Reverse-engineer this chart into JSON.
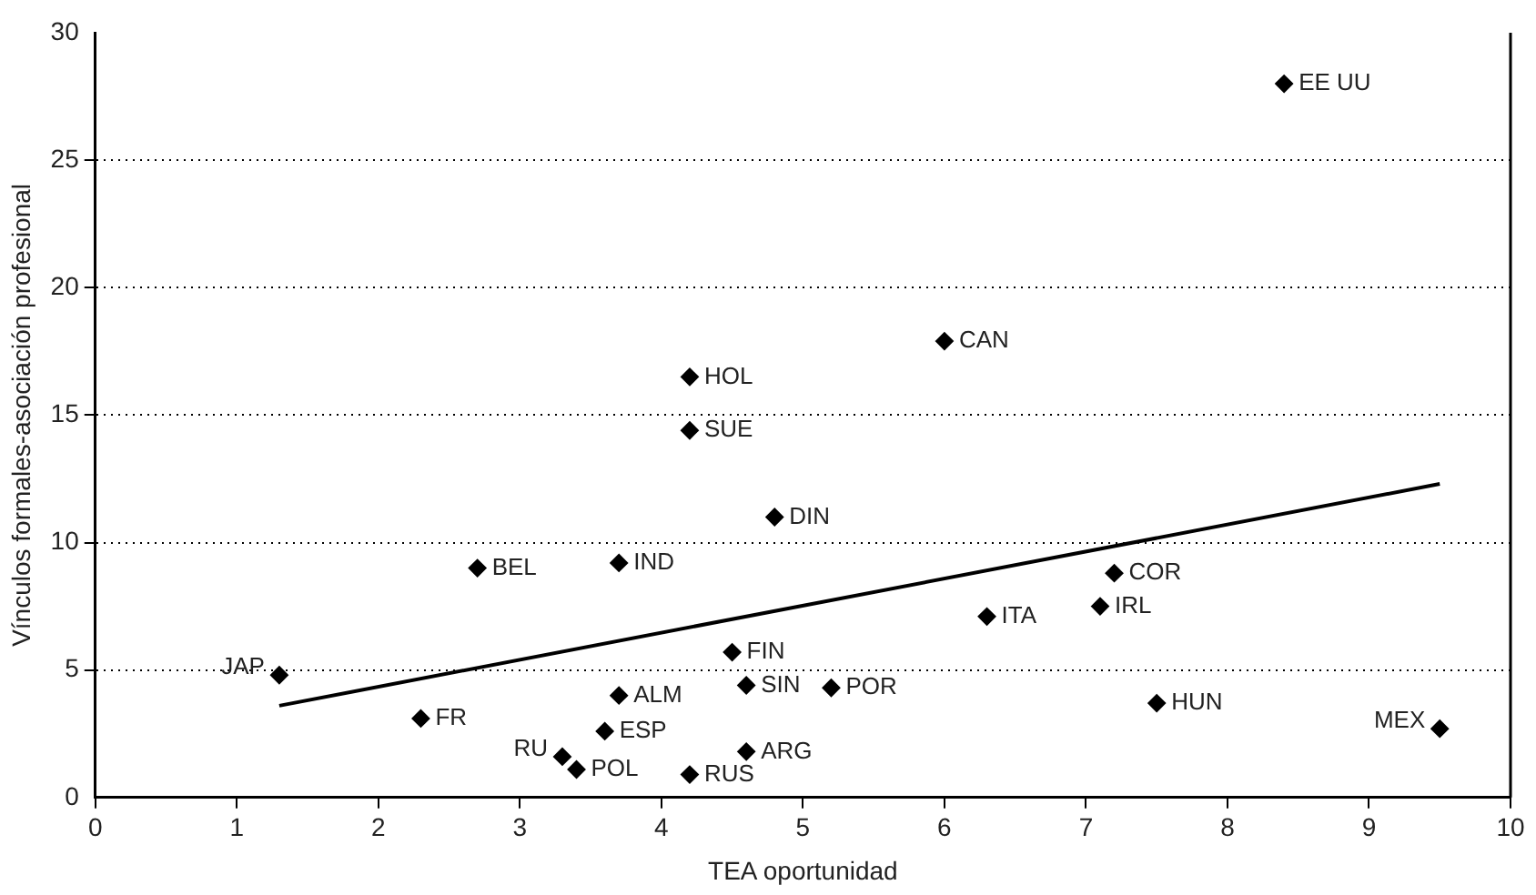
{
  "chart_data": {
    "type": "scatter",
    "xlabel": "TEA oportunidad",
    "ylabel": "Vínculos formales-asociación profesional",
    "xlim": [
      0,
      10
    ],
    "xticks": [
      0,
      1,
      2,
      3,
      4,
      5,
      6,
      7,
      8,
      9,
      10
    ],
    "ylim": [
      0,
      30
    ],
    "yticks": [
      0,
      5,
      10,
      15,
      20,
      25,
      30
    ],
    "grid": "y",
    "legend": false,
    "marker": "diamond",
    "series": [
      {
        "type": "scatter",
        "color": "#000000",
        "x": [
          1.3,
          2.3,
          2.7,
          3.3,
          3.4,
          3.6,
          3.7,
          3.7,
          4.2,
          4.2,
          4.2,
          4.5,
          4.6,
          4.6,
          4.8,
          5.2,
          6.0,
          6.3,
          7.1,
          7.2,
          7.5,
          9.5,
          8.4
        ],
        "values": [
          4.8,
          3.1,
          9.0,
          1.6,
          1.1,
          2.6,
          4.0,
          9.2,
          16.5,
          14.4,
          0.9,
          5.7,
          4.4,
          1.8,
          11.0,
          4.3,
          17.9,
          7.1,
          7.5,
          8.8,
          3.7,
          2.7,
          28.0
        ]
      },
      {
        "type": "line",
        "color": "#000000",
        "marker": "none",
        "line_style": "solid",
        "x": [
          1.3,
          9.5
        ],
        "values": [
          3.6,
          12.3
        ]
      }
    ],
    "annotations": [
      {
        "text": "JAP",
        "x": 1.3,
        "y": 4.8
      },
      {
        "text": "FR",
        "x": 2.3,
        "y": 3.1
      },
      {
        "text": "BEL",
        "x": 2.7,
        "y": 9.0
      },
      {
        "text": "RU",
        "x": 3.3,
        "y": 1.6
      },
      {
        "text": "POL",
        "x": 3.4,
        "y": 1.1
      },
      {
        "text": "ESP",
        "x": 3.6,
        "y": 2.6
      },
      {
        "text": "ALM",
        "x": 3.7,
        "y": 4.0
      },
      {
        "text": "IND",
        "x": 3.7,
        "y": 9.2
      },
      {
        "text": "HOL",
        "x": 4.2,
        "y": 16.5
      },
      {
        "text": "SUE",
        "x": 4.2,
        "y": 14.4
      },
      {
        "text": "RUS",
        "x": 4.2,
        "y": 0.9
      },
      {
        "text": "FIN",
        "x": 4.5,
        "y": 5.7
      },
      {
        "text": "SIN",
        "x": 4.6,
        "y": 4.4
      },
      {
        "text": "ARG",
        "x": 4.6,
        "y": 1.8
      },
      {
        "text": "DIN",
        "x": 4.8,
        "y": 11.0
      },
      {
        "text": "POR",
        "x": 5.2,
        "y": 4.3
      },
      {
        "text": "CAN",
        "x": 6.0,
        "y": 17.9
      },
      {
        "text": "ITA",
        "x": 6.3,
        "y": 7.1
      },
      {
        "text": "IRL",
        "x": 7.1,
        "y": 7.5
      },
      {
        "text": "COR",
        "x": 7.2,
        "y": 8.8
      },
      {
        "text": "HUN",
        "x": 7.5,
        "y": 3.7
      },
      {
        "text": "MEX",
        "x": 9.5,
        "y": 2.7
      },
      {
        "text": "EE UU",
        "x": 8.4,
        "y": 28.0
      }
    ]
  }
}
